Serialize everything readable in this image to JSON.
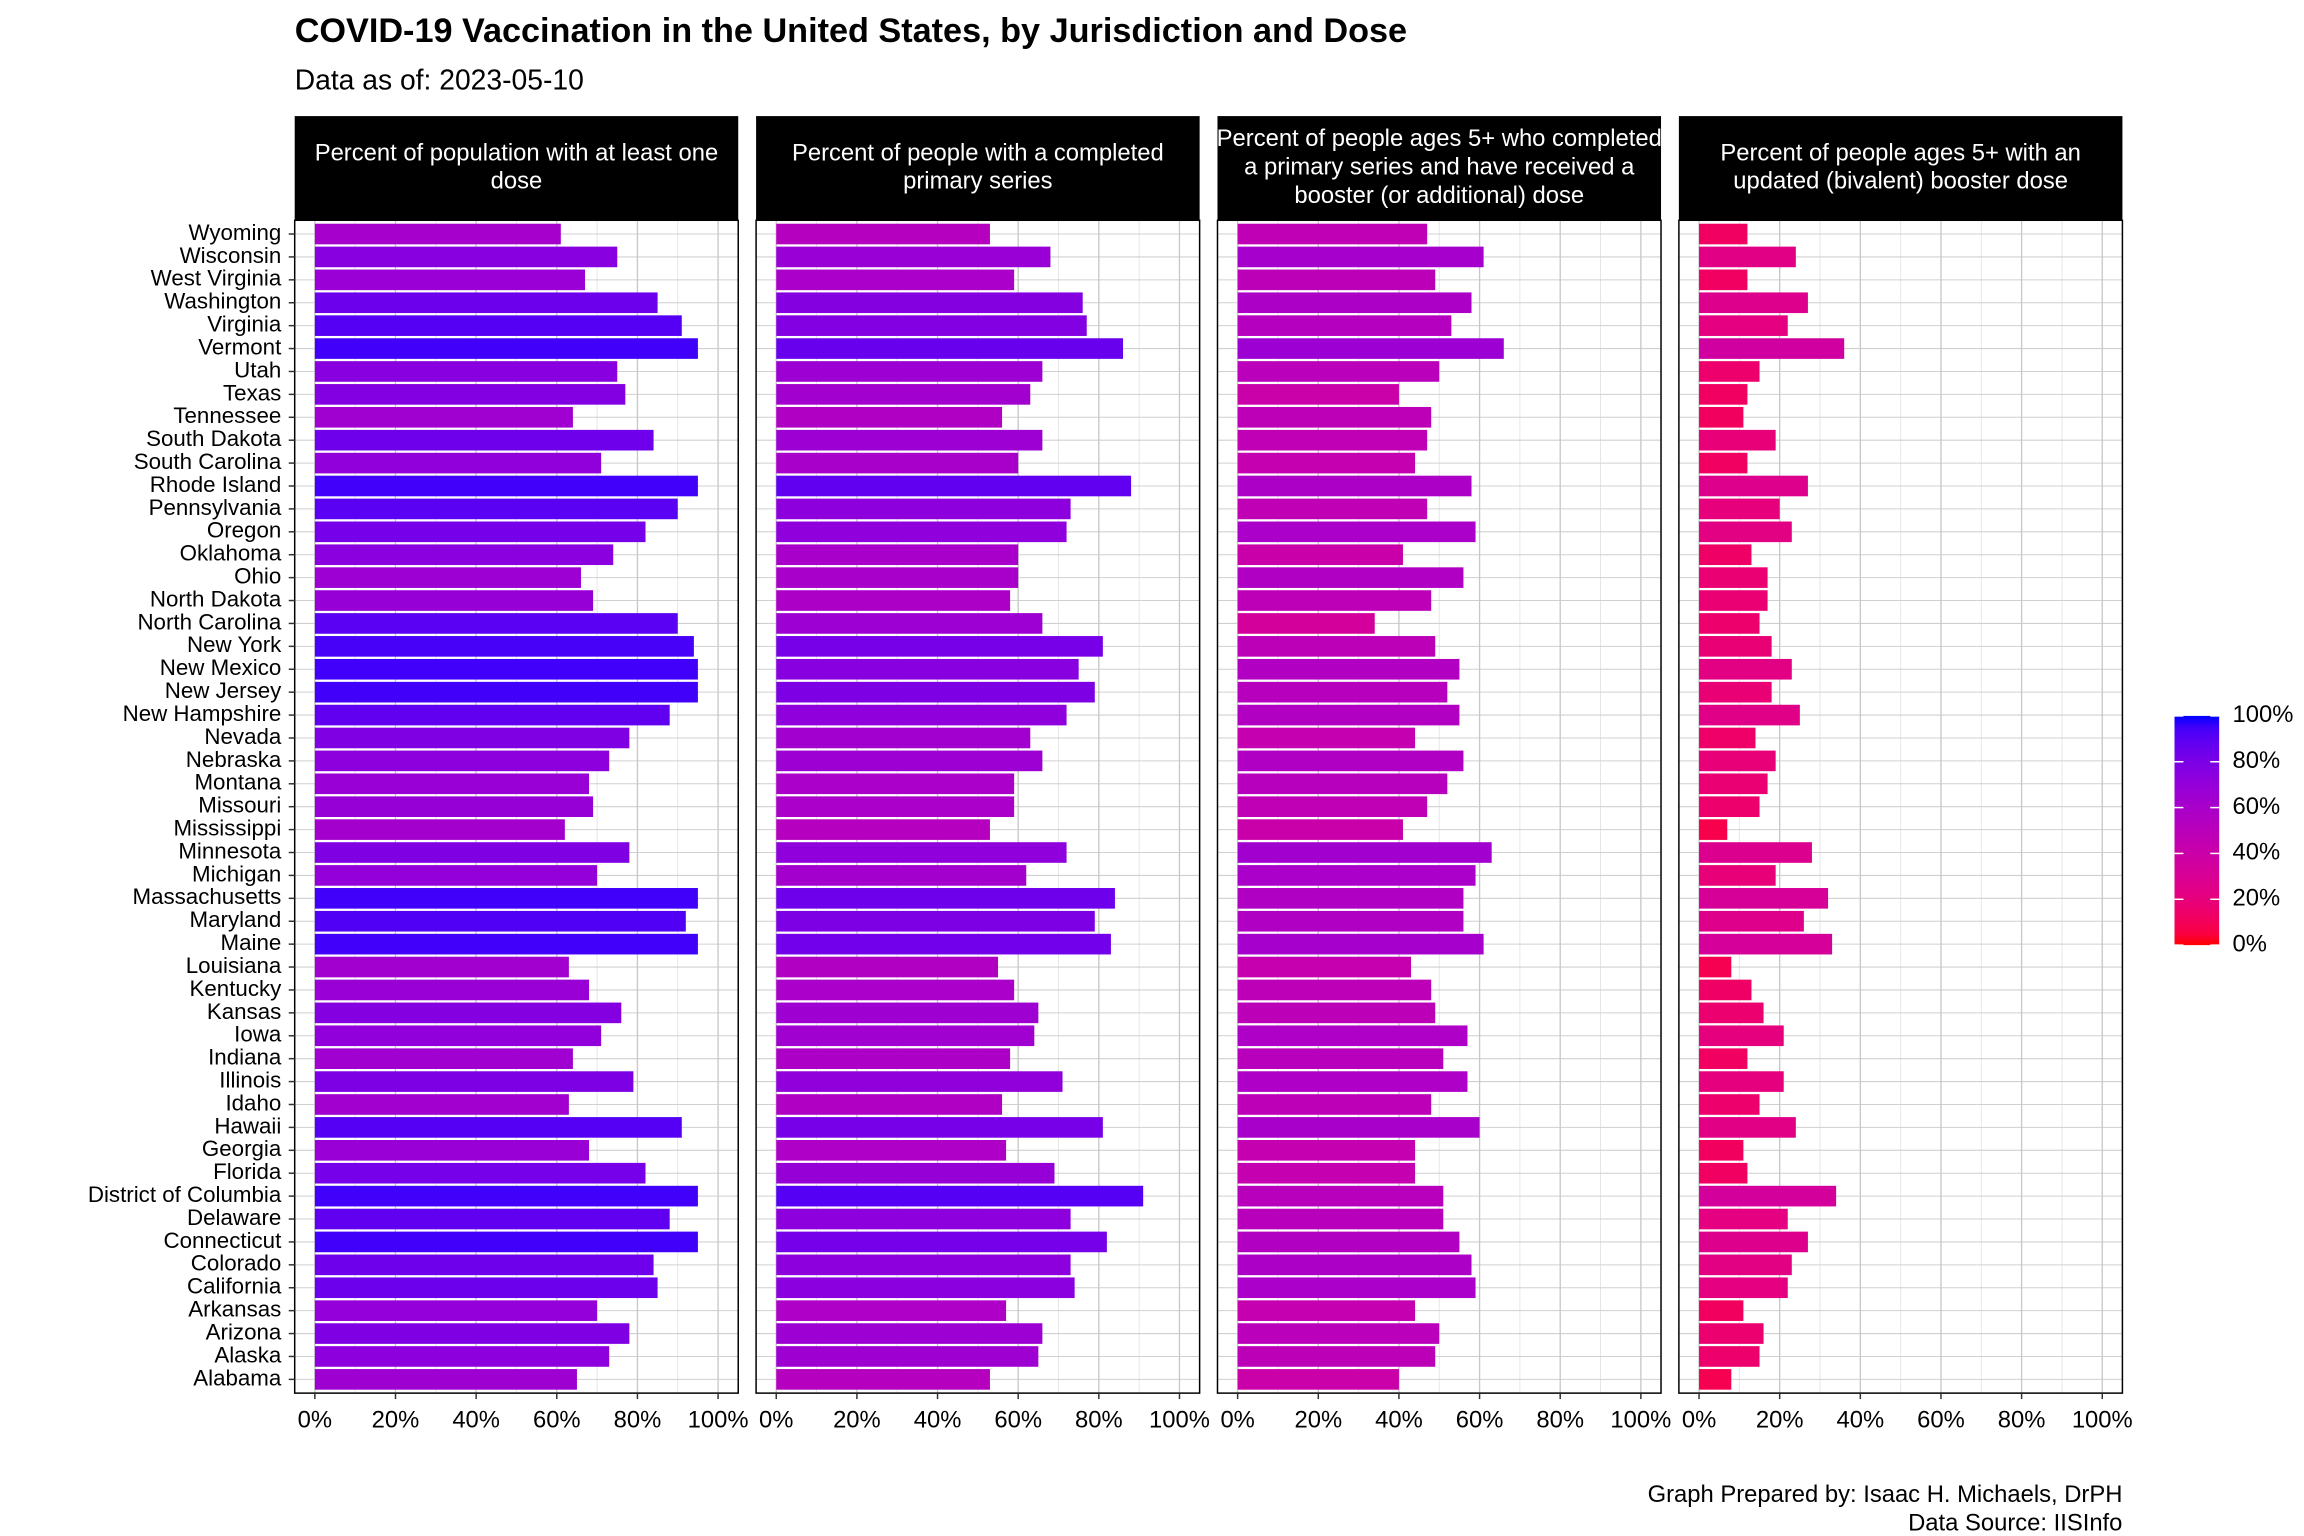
{
  "chart_data": {
    "type": "bar",
    "orientation": "horizontal",
    "title": "COVID-19 Vaccination in the United States, by Jurisdiction and Dose",
    "subtitle": "Data as of: 2023-05-10",
    "caption": [
      "Graph Prepared by: Isaac H. Michaels, DrPH",
      "Data Source: IISInfo"
    ],
    "categories": [
      "Wyoming",
      "Wisconsin",
      "West Virginia",
      "Washington",
      "Virginia",
      "Vermont",
      "Utah",
      "Texas",
      "Tennessee",
      "South Dakota",
      "South Carolina",
      "Rhode Island",
      "Pennsylvania",
      "Oregon",
      "Oklahoma",
      "Ohio",
      "North Dakota",
      "North Carolina",
      "New York",
      "New Mexico",
      "New Jersey",
      "New Hampshire",
      "Nevada",
      "Nebraska",
      "Montana",
      "Missouri",
      "Mississippi",
      "Minnesota",
      "Michigan",
      "Massachusetts",
      "Maryland",
      "Maine",
      "Louisiana",
      "Kentucky",
      "Kansas",
      "Iowa",
      "Indiana",
      "Illinois",
      "Idaho",
      "Hawaii",
      "Georgia",
      "Florida",
      "District of Columbia",
      "Delaware",
      "Connecticut",
      "Colorado",
      "California",
      "Arkansas",
      "Arizona",
      "Alaska",
      "Alabama"
    ],
    "facets": [
      {
        "title_lines": [
          "Percent of population with at least one",
          "dose"
        ],
        "values": [
          61,
          75,
          67,
          85,
          91,
          95,
          75,
          77,
          64,
          84,
          71,
          95,
          90,
          82,
          74,
          66,
          69,
          90,
          94,
          95,
          95,
          88,
          78,
          73,
          68,
          69,
          62,
          78,
          70,
          95,
          92,
          95,
          63,
          68,
          76,
          71,
          64,
          79,
          63,
          91,
          68,
          82,
          95,
          88,
          95,
          84,
          85,
          70,
          78,
          73,
          65
        ]
      },
      {
        "title_lines": [
          "Percent of people with a completed",
          "primary series"
        ],
        "values": [
          53,
          68,
          59,
          76,
          77,
          86,
          66,
          63,
          56,
          66,
          60,
          88,
          73,
          72,
          60,
          60,
          58,
          66,
          81,
          75,
          79,
          72,
          63,
          66,
          59,
          59,
          53,
          72,
          62,
          84,
          79,
          83,
          55,
          59,
          65,
          64,
          58,
          71,
          56,
          81,
          57,
          69,
          91,
          73,
          82,
          73,
          74,
          57,
          66,
          65,
          53
        ]
      },
      {
        "title_lines": [
          "Percent of people ages 5+ who completed",
          "a primary series and have received a",
          "booster (or additional) dose"
        ],
        "values": [
          47,
          61,
          49,
          58,
          53,
          66,
          50,
          40,
          48,
          47,
          44,
          58,
          47,
          59,
          41,
          56,
          48,
          34,
          49,
          55,
          52,
          55,
          44,
          56,
          52,
          47,
          41,
          63,
          59,
          56,
          56,
          61,
          43,
          48,
          49,
          57,
          51,
          57,
          48,
          60,
          44,
          44,
          51,
          51,
          55,
          58,
          59,
          44,
          50,
          49,
          40
        ]
      },
      {
        "title_lines": [
          "Percent of people ages 5+ with an",
          "updated (bivalent) booster dose"
        ],
        "values": [
          12,
          24,
          12,
          27,
          22,
          36,
          15,
          12,
          11,
          19,
          12,
          27,
          20,
          23,
          13,
          17,
          17,
          15,
          18,
          23,
          18,
          25,
          14,
          19,
          17,
          15,
          7,
          28,
          19,
          32,
          26,
          33,
          8,
          13,
          16,
          21,
          12,
          21,
          15,
          24,
          11,
          12,
          34,
          22,
          27,
          23,
          22,
          11,
          16,
          15,
          8
        ]
      }
    ],
    "xlim": [
      -5,
      105
    ],
    "xticks": [
      {
        "value": 0,
        "label": "0%"
      },
      {
        "value": 20,
        "label": "20%"
      },
      {
        "value": 40,
        "label": "40%"
      },
      {
        "value": 60,
        "label": "60%"
      },
      {
        "value": 80,
        "label": "80%"
      },
      {
        "value": 100,
        "label": "100%"
      }
    ],
    "grid": true,
    "color_scale": {
      "low": "#ff0000",
      "high": "#0000ff",
      "limits": [
        0,
        100
      ],
      "ticks": [
        {
          "value": 0,
          "label": "0%"
        },
        {
          "value": 20,
          "label": "20%"
        },
        {
          "value": 40,
          "label": "40%"
        },
        {
          "value": 60,
          "label": "60%"
        },
        {
          "value": 80,
          "label": "80%"
        },
        {
          "value": 100,
          "label": "100%"
        }
      ]
    },
    "legend_position": "right"
  }
}
